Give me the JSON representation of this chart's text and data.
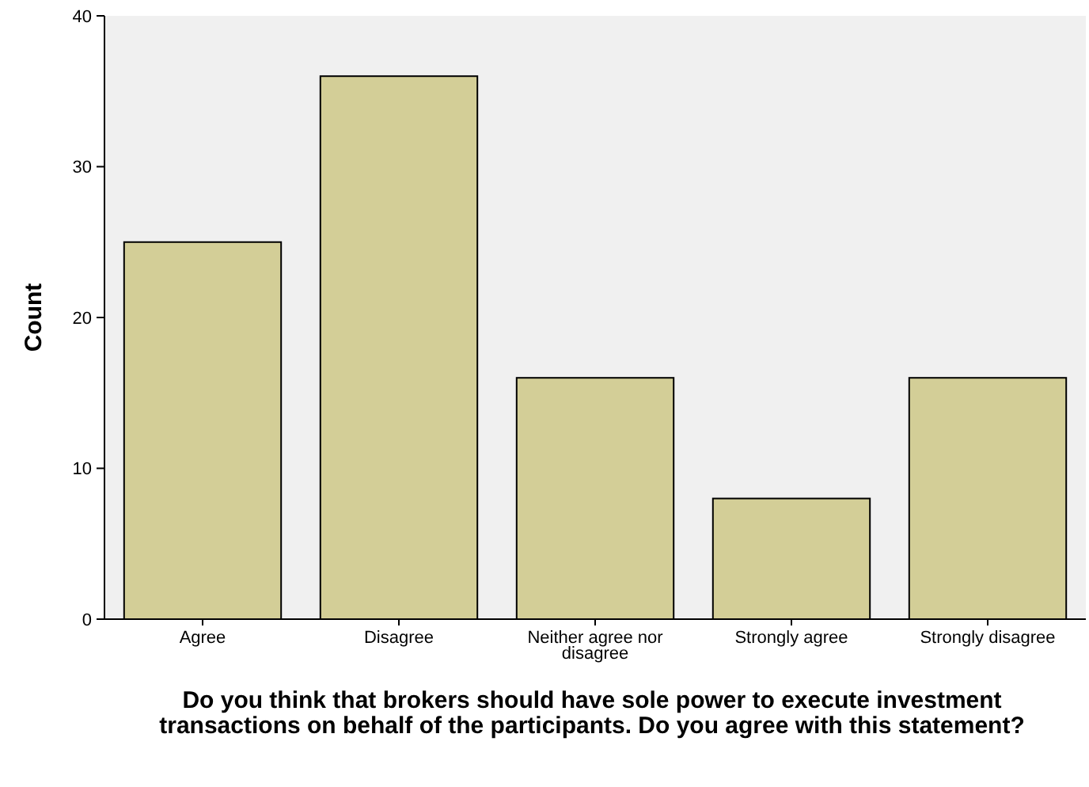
{
  "chart_data": {
    "type": "bar",
    "xlabel": "Do you think that brokers should have sole power to execute investment transactions on behalf of the participants. Do you agree with this statement?",
    "ylabel": "Count",
    "categories": [
      "Agree",
      "Disagree",
      "Neither agree nor disagree",
      "Strongly agree",
      "Strongly disagree"
    ],
    "values": [
      25,
      36,
      16,
      8,
      16
    ],
    "color": "#d3ce97",
    "ylim": [
      0,
      40
    ],
    "yticks": [
      0,
      10,
      20,
      30,
      40
    ],
    "grid": false
  }
}
